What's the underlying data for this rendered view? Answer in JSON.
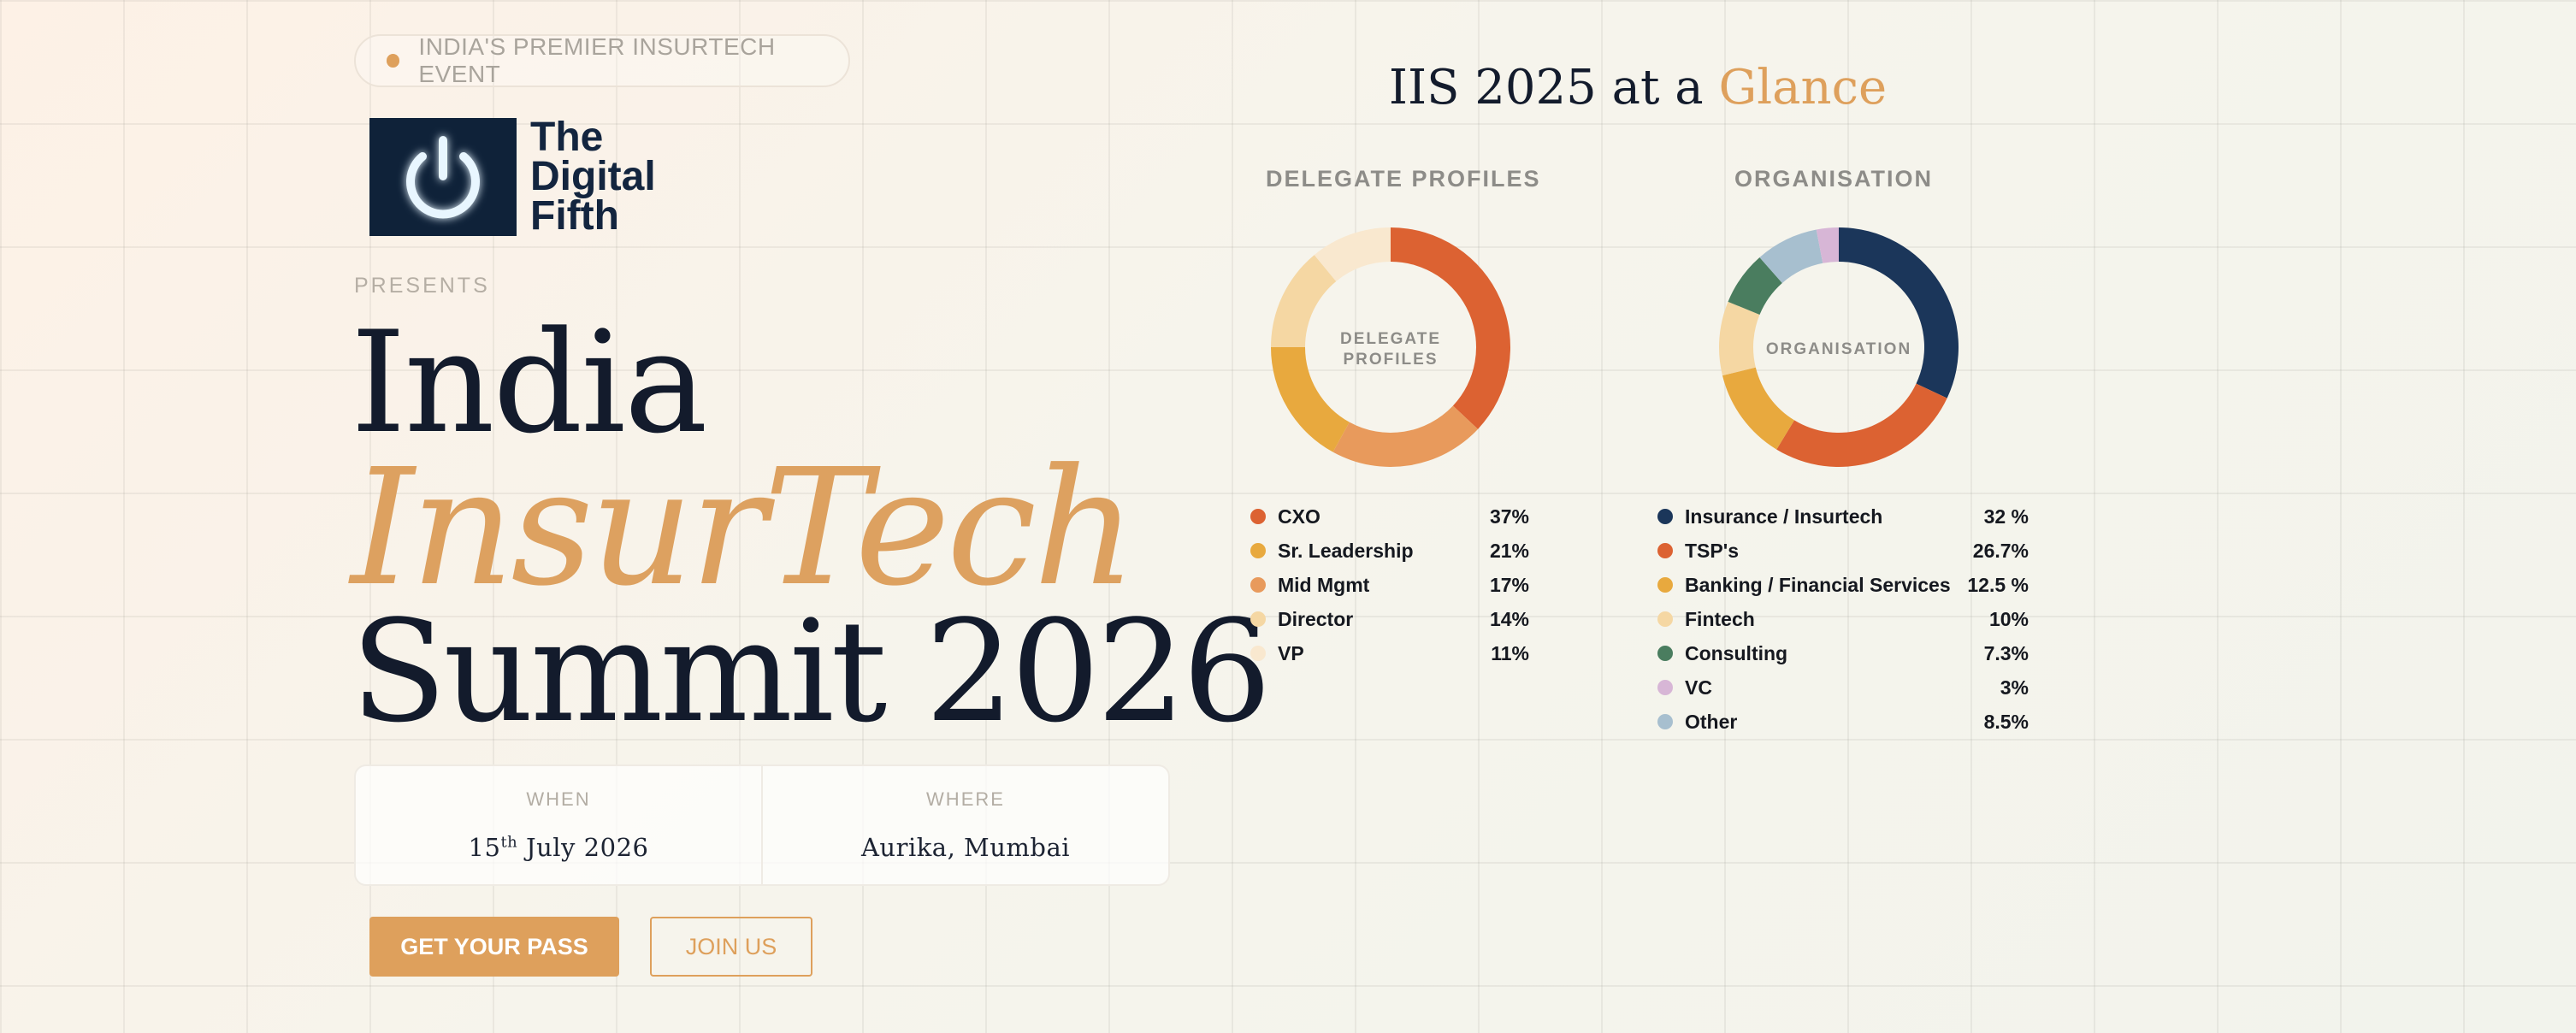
{
  "event_badge": "INDIA'S PREMIER INSURTECH EVENT",
  "logo": {
    "lines": [
      "The",
      "Digital",
      "Fifth"
    ],
    "icon": "power-icon",
    "colors": {
      "box": "#0f2239",
      "glow": "#8fd0ff"
    }
  },
  "presents": "PRESENTS",
  "title": {
    "line1": "India",
    "line2": "InsurTech",
    "line3": "Summit 2026"
  },
  "when": {
    "label": "WHEN",
    "day": "15",
    "suffix": "th",
    "rest": " July 2026"
  },
  "where": {
    "label": "WHERE",
    "value": "Aurika, Mumbai"
  },
  "buttons": {
    "primary": "GET YOUR PASS",
    "secondary": "JOIN US"
  },
  "glance": {
    "prefix": "IIS 2025 at a ",
    "accent": "Glance"
  },
  "colors": {
    "accent": "#dea05c",
    "navy": "#131b2c"
  },
  "chart_data": [
    {
      "type": "pie",
      "title": "DELEGATE PROFILES",
      "center_label": [
        "DELEGATE",
        "PROFILES"
      ],
      "categories": [
        "CXO",
        "Sr. Leadership",
        "Mid Mgmt",
        "Director",
        "VP"
      ],
      "values": [
        37,
        21,
        17,
        14,
        11
      ],
      "value_labels": [
        "37%",
        "21%",
        "17%",
        "14%",
        "11%"
      ],
      "colors": [
        "#dc6232",
        "#e89a5c",
        "#e8a93e",
        "#f5d7a3",
        "#f9e8cf"
      ],
      "legend_colors": [
        "#dc6232",
        "#e8a93e",
        "#e89a5c",
        "#f5d7a3",
        "#f9e8cf"
      ],
      "donut": true
    },
    {
      "type": "pie",
      "title": "ORGANISATION",
      "center_label": [
        "ORGANISATION"
      ],
      "categories": [
        "Insurance / Insurtech",
        "TSP's",
        "Banking / Financial Services",
        "Fintech",
        "Consulting",
        "VC",
        "Other"
      ],
      "values": [
        32,
        26.7,
        12.5,
        10,
        7.3,
        3,
        8.5
      ],
      "value_labels": [
        "32 %",
        "26.7%",
        "12.5 %",
        "10%",
        "7.3%",
        "3%",
        "8.5%"
      ],
      "chart_order": [
        0,
        1,
        2,
        3,
        4,
        6,
        5
      ],
      "colors": [
        "#1b365a",
        "#dc6232",
        "#e8a93e",
        "#f5d7a3",
        "#4a7d5f",
        "#d7b6d6",
        "#a7bfcf"
      ],
      "donut": true
    }
  ]
}
